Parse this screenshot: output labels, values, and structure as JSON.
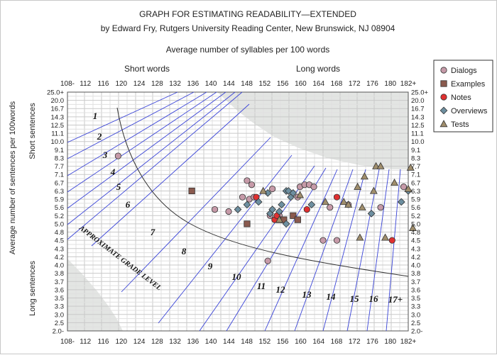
{
  "chart_data": {
    "type": "scatter",
    "title": "GRAPH FOR ESTIMATING READABILITY—EXTENDED",
    "subtitle": "by Edward Fry, Rutgers University Reading Center, New Brunswick, NJ 08904",
    "xlabel": "Average number of syllables per 100 words",
    "ylabel": "Average number of sentences per 100words",
    "x_notes": [
      "Short words",
      "Long words"
    ],
    "y_notes": [
      "Short sentences",
      "Long sentences"
    ],
    "x_ticks": [
      "108-",
      "112",
      "116",
      "120",
      "124",
      "128",
      "132",
      "136",
      "140",
      "144",
      "148",
      "152",
      "156",
      "160",
      "164",
      "168",
      "172",
      "176",
      "180",
      "182+"
    ],
    "y_ticks": [
      "25.0+",
      "20.0",
      "16.7",
      "14.3",
      "12.5",
      "11.1",
      "10.0",
      "9.1",
      "8.3",
      "7.7",
      "7.1",
      "6.7",
      "6.3",
      "5.9",
      "5.6",
      "5.2",
      "5.0",
      "4.8",
      "4.5",
      "4.3",
      "4.2",
      "4.0",
      "3.8",
      "3.7",
      "3.6",
      "3.5",
      "3.3",
      "3.0",
      "2.5",
      "2.0-"
    ],
    "grade_labels": [
      "1",
      "2",
      "3",
      "4",
      "5",
      "6",
      "7",
      "8",
      "9",
      "10",
      "11",
      "12",
      "13",
      "14",
      "15",
      "16",
      "17+"
    ],
    "curve_label": "APPROXIMATE GRADE LEVEL",
    "grid": true,
    "legend_position": "top-right",
    "series": [
      {
        "name": "Dialogs",
        "marker": "circle",
        "color": "#c69aa8",
        "points": [
          [
            119,
            8.5
          ],
          [
            140,
            5.5
          ],
          [
            143,
            5.4
          ],
          [
            146,
            6.0
          ],
          [
            147,
            6.8
          ],
          [
            147.5,
            5.9
          ],
          [
            148,
            6.6
          ],
          [
            148.5,
            6.0
          ],
          [
            151.5,
            4.1
          ],
          [
            152,
            5.2
          ],
          [
            152.5,
            6.4
          ],
          [
            154,
            5.2
          ],
          [
            158,
            6.0
          ],
          [
            158.5,
            6.5
          ],
          [
            159.5,
            6.6
          ],
          [
            160.5,
            6.6
          ],
          [
            161.5,
            6.5
          ],
          [
            163.5,
            4.5
          ],
          [
            165,
            5.6
          ],
          [
            166.5,
            4.5
          ],
          [
            169,
            5.7
          ],
          [
            176,
            5.6
          ],
          [
            181,
            6.5
          ]
        ]
      },
      {
        "name": "Examples",
        "marker": "square",
        "color": "#8a5a4e",
        "points": [
          [
            135,
            6.3
          ],
          [
            147,
            5.0
          ],
          [
            154,
            5.1
          ],
          [
            155,
            5.1
          ],
          [
            157,
            5.2
          ],
          [
            158,
            5.1
          ]
        ]
      },
      {
        "name": "Notes",
        "marker": "circle",
        "color": "#e03030",
        "points": [
          [
            149,
            6.0
          ],
          [
            153,
            5.1
          ],
          [
            153.5,
            5.2
          ],
          [
            160,
            5.5
          ],
          [
            166.5,
            6.0
          ],
          [
            178.5,
            4.5
          ]
        ]
      },
      {
        "name": "Overviews",
        "marker": "diamond",
        "color": "#6d8fa0",
        "points": [
          [
            145,
            5.5
          ],
          [
            147,
            5.7
          ],
          [
            149.5,
            5.8
          ],
          [
            151.5,
            6.2
          ],
          [
            152,
            5.3
          ],
          [
            152.5,
            5.5
          ],
          [
            154,
            5.4
          ],
          [
            154.5,
            5.7
          ],
          [
            155.5,
            5.0
          ],
          [
            155.5,
            6.3
          ],
          [
            156,
            6.3
          ],
          [
            156.5,
            6.0
          ],
          [
            157,
            6.2
          ],
          [
            161,
            5.7
          ],
          [
            174,
            5.3
          ],
          [
            180.5,
            5.8
          ],
          [
            182,
            6.3
          ]
        ]
      },
      {
        "name": "Tests",
        "marker": "triangle",
        "color": "#a08e6c",
        "points": [
          [
            150.5,
            6.3
          ],
          [
            154,
            5.1
          ],
          [
            158.5,
            6.1
          ],
          [
            164,
            5.8
          ],
          [
            168,
            5.8
          ],
          [
            169,
            5.7
          ],
          [
            171,
            6.5
          ],
          [
            171.5,
            4.6
          ],
          [
            172,
            5.6
          ],
          [
            172.5,
            7.0
          ],
          [
            174.5,
            6.3
          ],
          [
            175,
            7.7
          ],
          [
            176,
            7.7
          ],
          [
            177,
            4.6
          ],
          [
            179,
            6.7
          ],
          [
            182,
            6.4
          ],
          [
            182.5,
            7.6
          ],
          [
            183,
            4.9
          ]
        ]
      }
    ]
  }
}
